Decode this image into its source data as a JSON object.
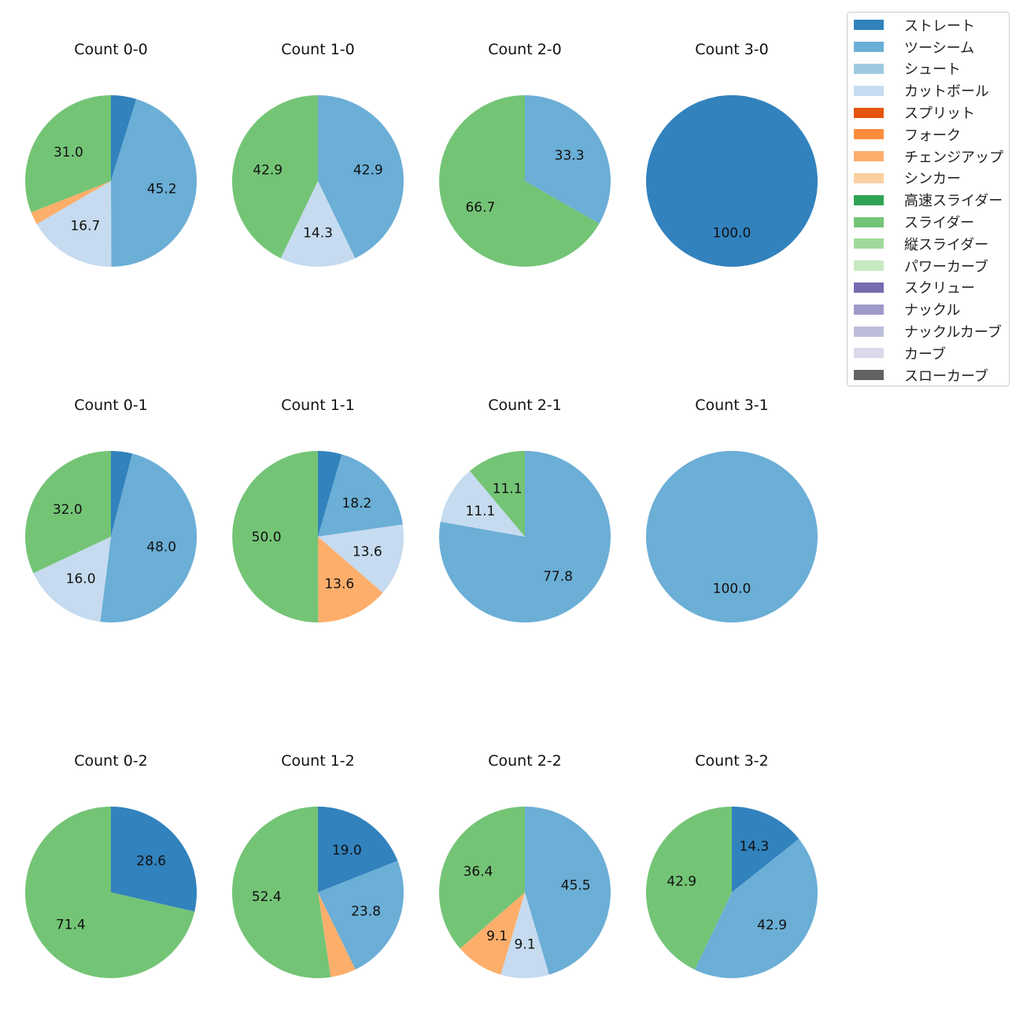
{
  "chart_data": {
    "type": "pie",
    "series_colors": {
      "ストレート": "#3182bd",
      "ツーシーム": "#6baed6",
      "シュート": "#9ecae1",
      "カットボール": "#c6dbef",
      "スプリット": "#e6550d",
      "フォーク": "#fd8d3c",
      "チェンジアップ": "#fdae6b",
      "シンカー": "#fdd0a2",
      "高速スライダー": "#31a354",
      "スライダー": "#74c476",
      "縦スライダー": "#a1d99b",
      "パワーカーブ": "#c7e9c0",
      "スクリュー": "#756bb1",
      "ナックル": "#9e9ac8",
      "ナックルカーブ": "#bcbddc",
      "カーブ": "#dadaeb",
      "スローカーブ": "#636363"
    },
    "legend": [
      "ストレート",
      "ツーシーム",
      "シュート",
      "カットボール",
      "スプリット",
      "フォーク",
      "チェンジアップ",
      "シンカー",
      "高速スライダー",
      "スライダー",
      "縦スライダー",
      "パワーカーブ",
      "スクリュー",
      "ナックル",
      "ナックルカーブ",
      "カーブ",
      "スローカーブ"
    ],
    "legend_placement": "top-right",
    "charts": [
      {
        "title": "Count 0-0",
        "slices": [
          {
            "label": "ストレート",
            "value": 4.8
          },
          {
            "label": "ツーシーム",
            "value": 45.2
          },
          {
            "label": "カットボール",
            "value": 16.7
          },
          {
            "label": "チェンジアップ",
            "value": 2.4
          },
          {
            "label": "スライダー",
            "value": 31.0
          }
        ]
      },
      {
        "title": "Count 1-0",
        "slices": [
          {
            "label": "ツーシーム",
            "value": 42.9
          },
          {
            "label": "カットボール",
            "value": 14.3
          },
          {
            "label": "スライダー",
            "value": 42.9
          }
        ]
      },
      {
        "title": "Count 2-0",
        "slices": [
          {
            "label": "ツーシーム",
            "value": 33.3
          },
          {
            "label": "スライダー",
            "value": 66.7
          }
        ]
      },
      {
        "title": "Count 3-0",
        "slices": [
          {
            "label": "ストレート",
            "value": 100.0
          }
        ]
      },
      {
        "title": "Count 0-1",
        "slices": [
          {
            "label": "ストレート",
            "value": 4.0
          },
          {
            "label": "ツーシーム",
            "value": 48.0
          },
          {
            "label": "カットボール",
            "value": 16.0
          },
          {
            "label": "スライダー",
            "value": 32.0
          }
        ]
      },
      {
        "title": "Count 1-1",
        "slices": [
          {
            "label": "ストレート",
            "value": 4.5
          },
          {
            "label": "ツーシーム",
            "value": 18.2
          },
          {
            "label": "カットボール",
            "value": 13.6
          },
          {
            "label": "チェンジアップ",
            "value": 13.6
          },
          {
            "label": "スライダー",
            "value": 50.0
          }
        ]
      },
      {
        "title": "Count 2-1",
        "slices": [
          {
            "label": "ツーシーム",
            "value": 77.8
          },
          {
            "label": "カットボール",
            "value": 11.1
          },
          {
            "label": "スライダー",
            "value": 11.1
          }
        ]
      },
      {
        "title": "Count 3-1",
        "slices": [
          {
            "label": "ツーシーム",
            "value": 100.0
          }
        ]
      },
      {
        "title": "Count 0-2",
        "slices": [
          {
            "label": "ストレート",
            "value": 28.6
          },
          {
            "label": "スライダー",
            "value": 71.4
          }
        ]
      },
      {
        "title": "Count 1-2",
        "slices": [
          {
            "label": "ストレート",
            "value": 19.0
          },
          {
            "label": "ツーシーム",
            "value": 23.8
          },
          {
            "label": "チェンジアップ",
            "value": 4.8
          },
          {
            "label": "スライダー",
            "value": 52.4
          }
        ]
      },
      {
        "title": "Count 2-2",
        "slices": [
          {
            "label": "ツーシーム",
            "value": 45.5
          },
          {
            "label": "カットボール",
            "value": 9.1
          },
          {
            "label": "チェンジアップ",
            "value": 9.1
          },
          {
            "label": "スライダー",
            "value": 36.4
          }
        ]
      },
      {
        "title": "Count 3-2",
        "slices": [
          {
            "label": "ストレート",
            "value": 14.3
          },
          {
            "label": "ツーシーム",
            "value": 42.9
          },
          {
            "label": "スライダー",
            "value": 42.9
          }
        ]
      }
    ]
  }
}
